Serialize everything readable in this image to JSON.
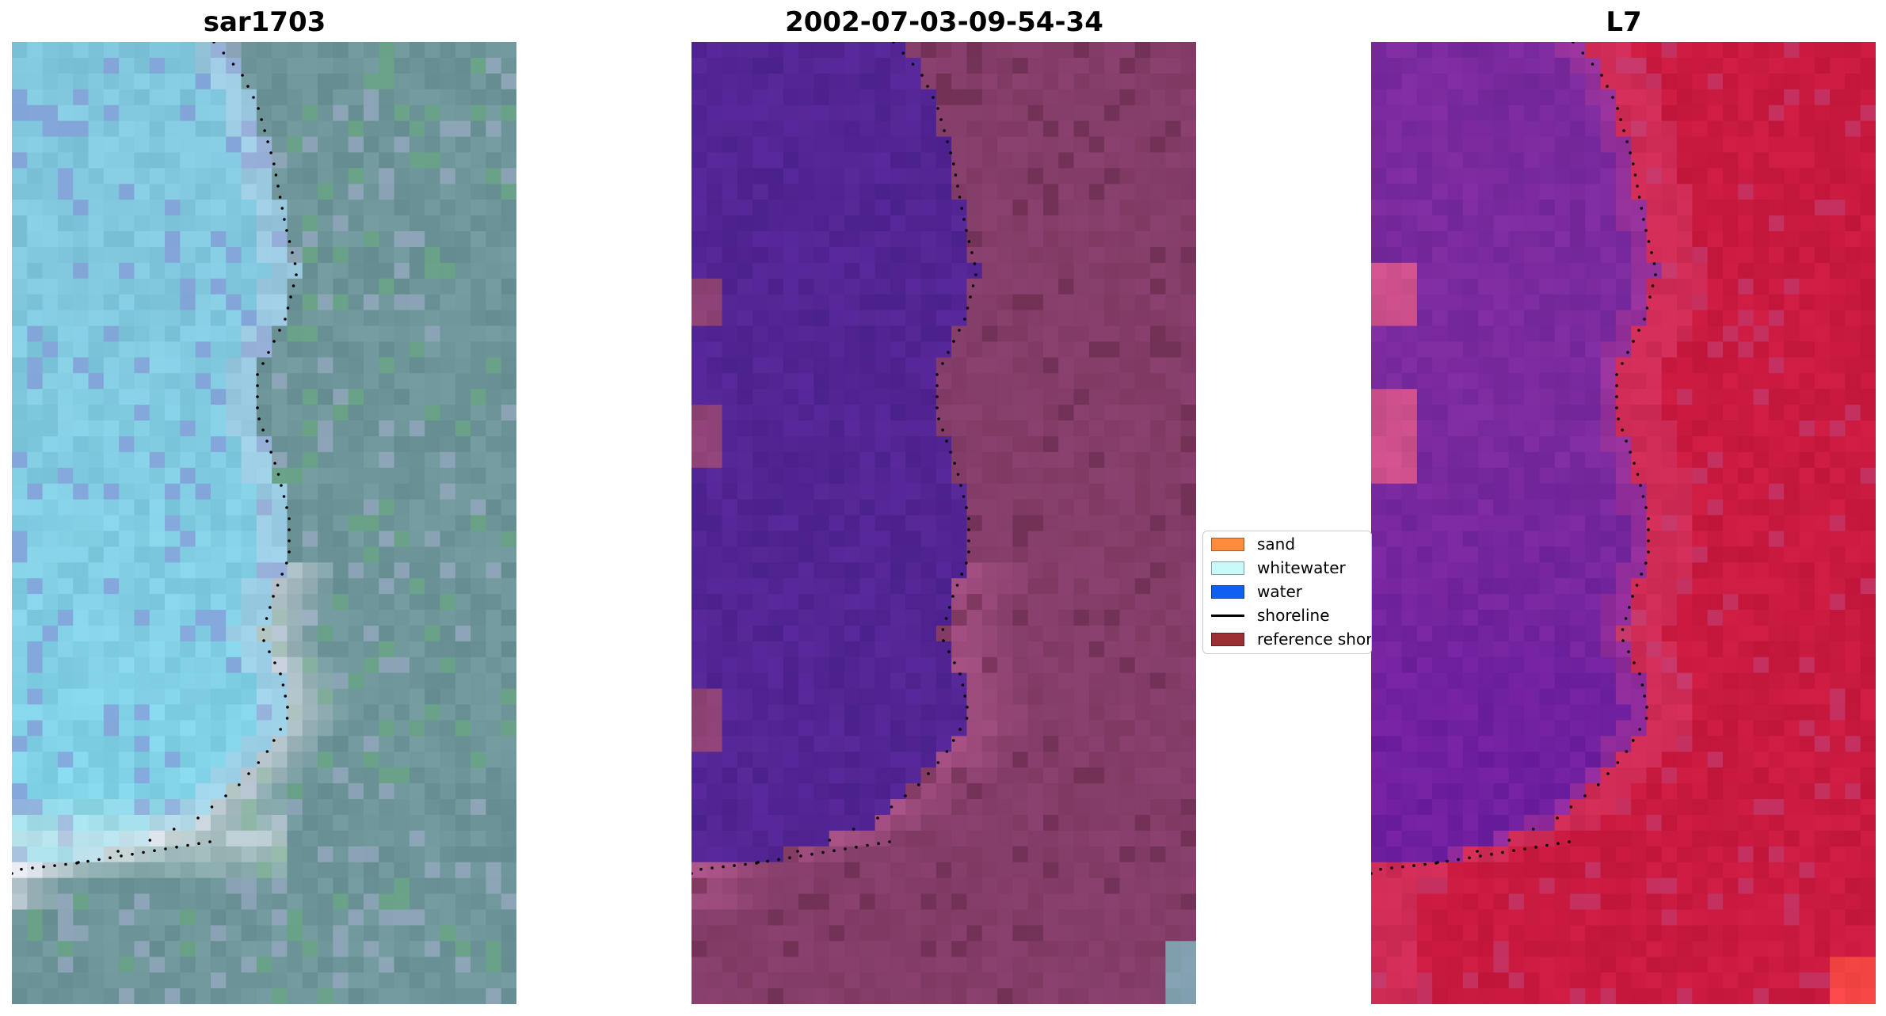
{
  "titles": {
    "left": "sar1703",
    "middle": "2002-07-03-09-54-34",
    "right": "L7"
  },
  "legend": {
    "items": [
      {
        "label": "sand",
        "color": "#ff8c3c",
        "kind": "patch",
        "icon": "sand-swatch"
      },
      {
        "label": "whitewater",
        "color": "#c8fafa",
        "kind": "patch",
        "icon": "whitewater-swatch"
      },
      {
        "label": "water",
        "color": "#1060f0",
        "kind": "patch",
        "icon": "water-swatch"
      },
      {
        "label": "shoreline",
        "color": "#000000",
        "kind": "line",
        "icon": "shoreline-line"
      },
      {
        "label": "reference shoreline",
        "color": "#9a3034",
        "kind": "patch",
        "icon": "reference-shoreline-swatch"
      }
    ]
  },
  "colors": {
    "rgb_water": "#7fc6dc",
    "rgb_land": "#6e969a",
    "classified_water": "#522594",
    "classified_land": "#843d69",
    "falsecolor_water": "#7a2a9e",
    "falsecolor_land": "#c8193e",
    "shoreline_dots": "#000000"
  }
}
